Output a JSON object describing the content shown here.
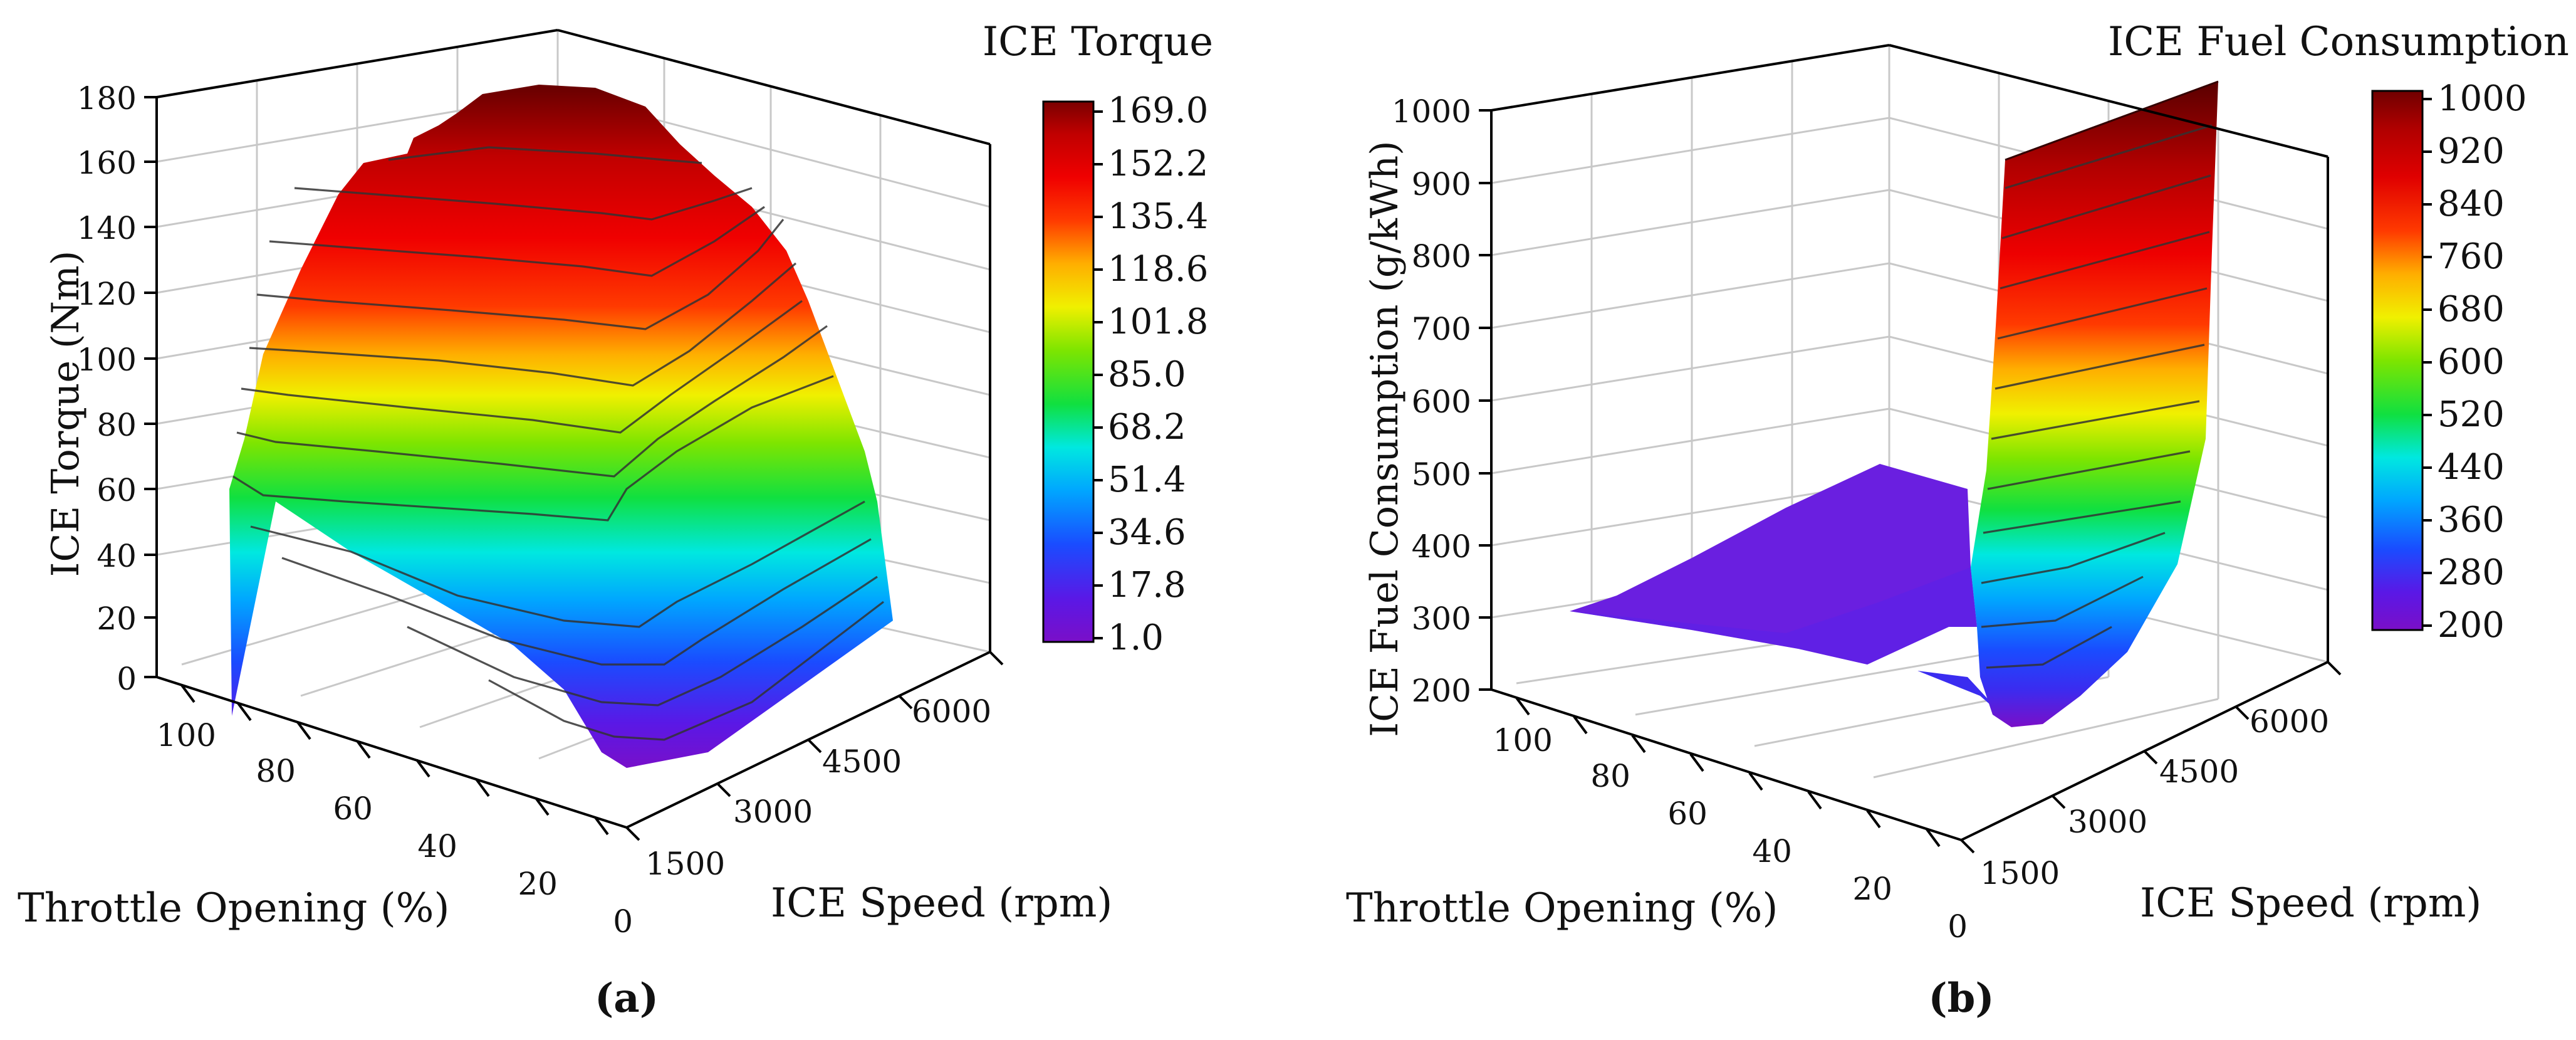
{
  "chart_data": [
    {
      "type": "surface3d",
      "panel_label": "(a)",
      "title": "ICE Torque",
      "xlabel": "Throttle Opening (%)",
      "ylabel": "ICE Speed (rpm)",
      "zlabel": "ICE Torque (Nm)",
      "x_ticks": [
        "100",
        "80",
        "60",
        "40",
        "20",
        "0"
      ],
      "y_ticks": [
        "1500",
        "3000",
        "4500",
        "6000"
      ],
      "z_ticks": [
        "0",
        "20",
        "40",
        "60",
        "80",
        "100",
        "120",
        "140",
        "160",
        "180"
      ],
      "zlim": [
        0,
        180
      ],
      "colorbar": {
        "min": 1.0,
        "max": 169.0,
        "tick_labels": [
          "169.0",
          "152.2",
          "135.4",
          "118.6",
          "101.8",
          "85.0",
          "68.2",
          "51.4",
          "34.6",
          "17.8",
          "1.0"
        ]
      },
      "contour_levels": [
        20,
        40,
        60,
        80,
        100,
        120,
        140,
        160
      ]
    },
    {
      "type": "surface3d",
      "panel_label": "(b)",
      "title": "ICE  Fuel Consumption",
      "xlabel": "Throttle Opening (%)",
      "ylabel": "ICE Speed (rpm)",
      "zlabel": "ICE  Fuel Consumption (g/kWh)",
      "x_ticks": [
        "100",
        "80",
        "60",
        "40",
        "20",
        "0"
      ],
      "y_ticks": [
        "1500",
        "3000",
        "4500",
        "6000"
      ],
      "z_ticks": [
        "200",
        "300",
        "400",
        "500",
        "600",
        "700",
        "800",
        "900",
        "1000"
      ],
      "zlim": [
        200,
        1000
      ],
      "colorbar": {
        "min": 200,
        "max": 1000,
        "tick_labels": [
          "1000",
          "920",
          "840",
          "760",
          "680",
          "600",
          "520",
          "440",
          "360",
          "280",
          "200"
        ]
      },
      "contour_levels": [
        250,
        300,
        400,
        500,
        600,
        700,
        800,
        900
      ]
    }
  ]
}
